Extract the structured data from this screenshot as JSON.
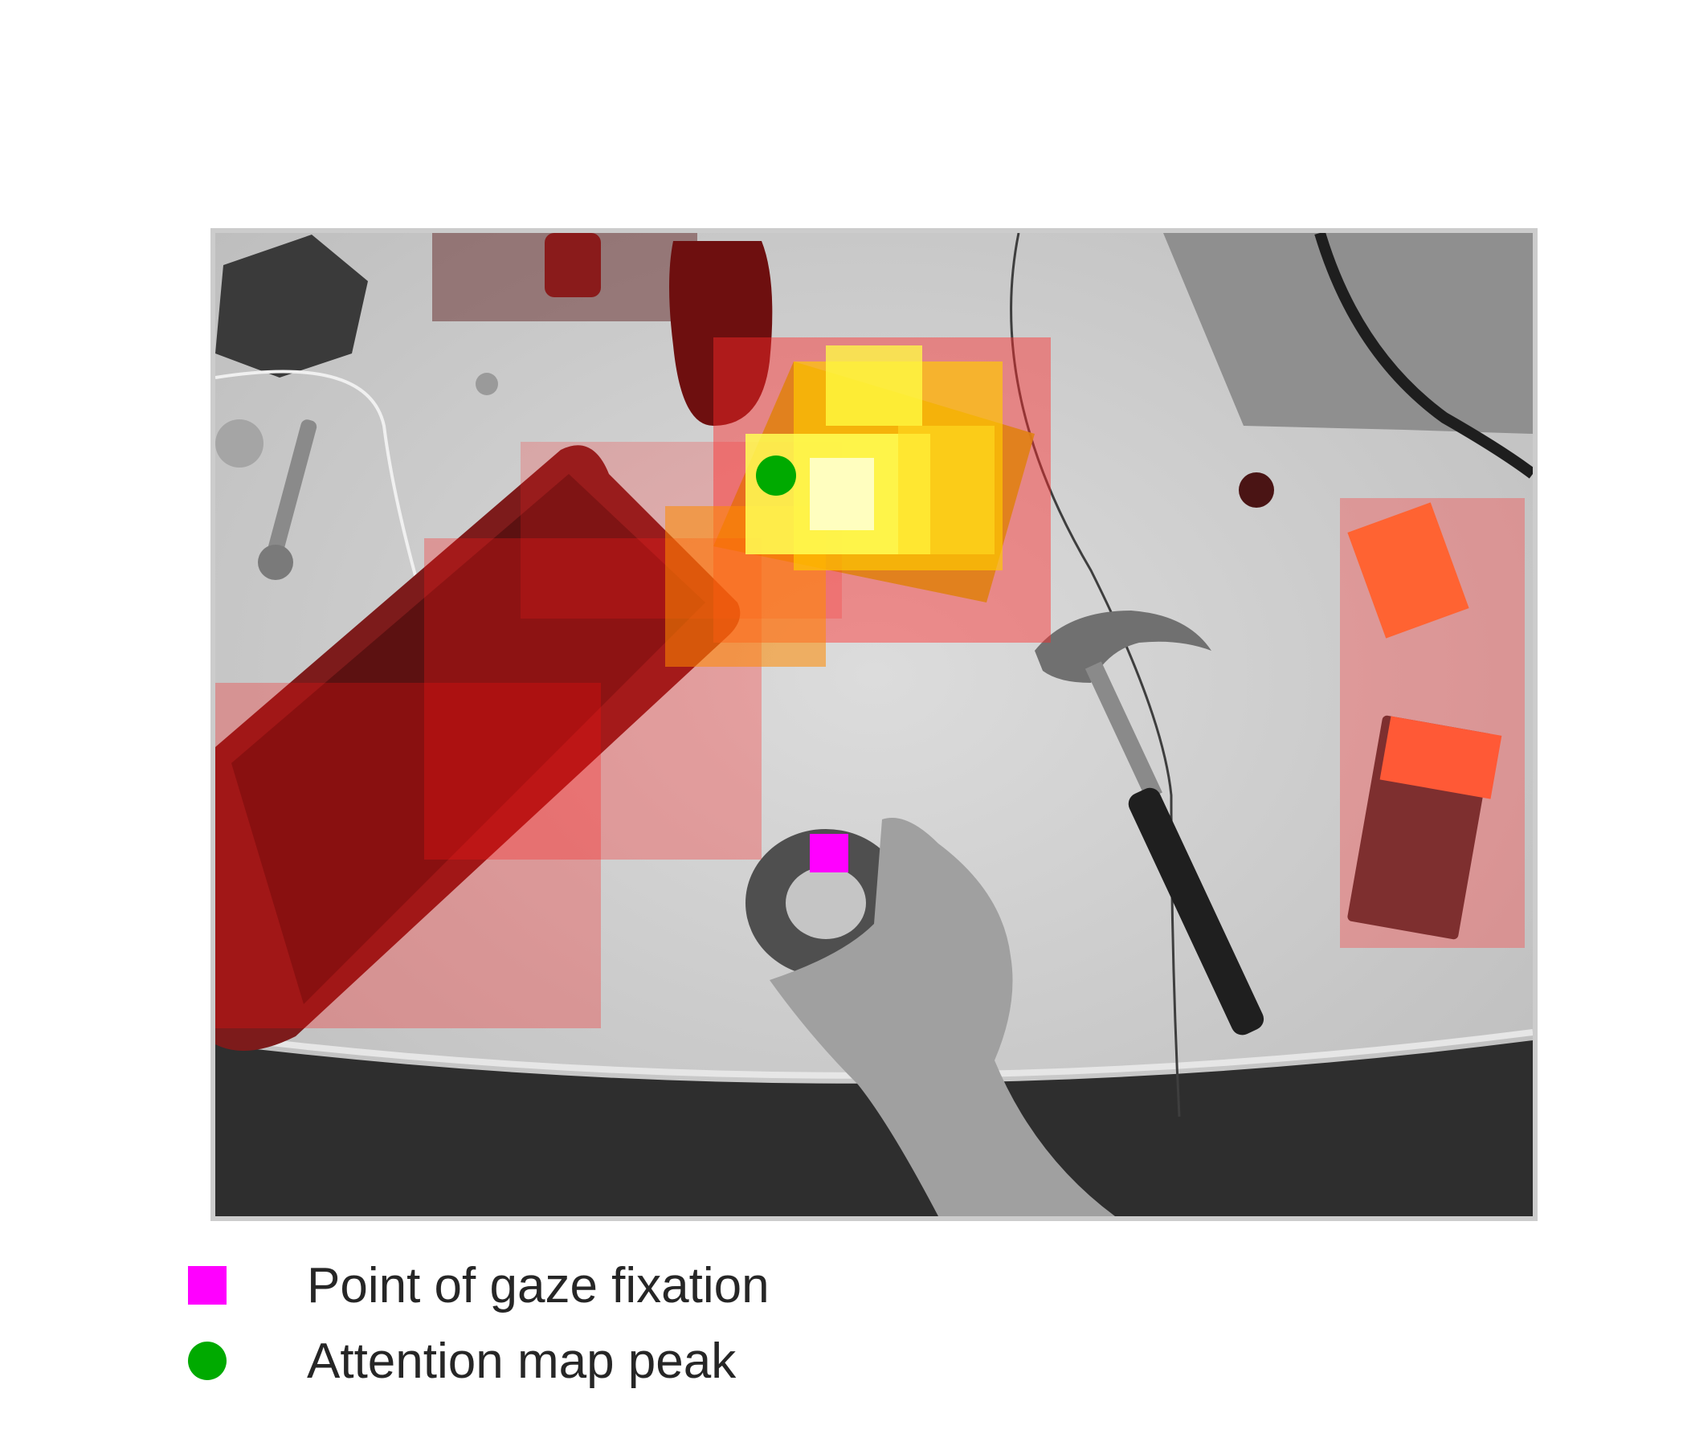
{
  "figure": {
    "scene_objects": [
      "keyboard",
      "box",
      "hammer",
      "tape-roll",
      "hand",
      "bottles",
      "book",
      "wrench"
    ],
    "heatmap_colors": [
      "#ff0000",
      "#ffff00",
      "#ffffff"
    ],
    "markers": {
      "gaze_fixation": {
        "color": "#ff00ff",
        "shape": "square"
      },
      "attention_peak": {
        "color": "#00aa00",
        "shape": "circle"
      }
    }
  },
  "legend": {
    "items": [
      {
        "label": "Point of gaze fixation",
        "color": "#ff00ff",
        "shape": "square"
      },
      {
        "label": "Attention map peak",
        "color": "#00aa00",
        "shape": "circle"
      }
    ]
  }
}
